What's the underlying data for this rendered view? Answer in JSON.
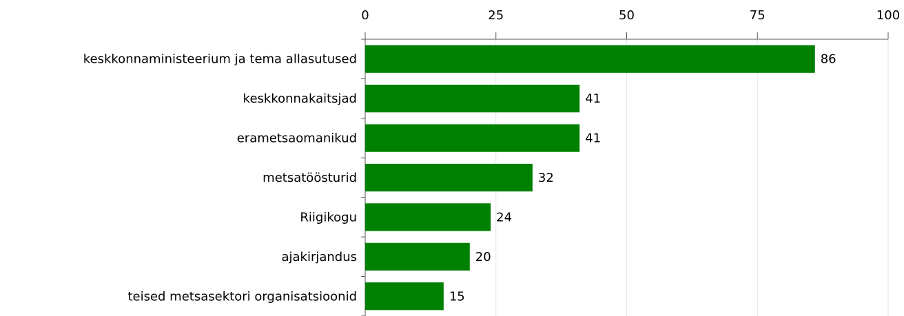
{
  "chart_data": {
    "type": "bar",
    "orientation": "horizontal",
    "categories": [
      "keskkonnaministeerium ja tema allasutused",
      "keskkonnakaitsjad",
      "erametsaomanikud",
      "metsatöösturid",
      "Riigikogu",
      "ajakirjandus",
      "teised metsasektori organisatsioonid"
    ],
    "values": [
      86,
      41,
      41,
      32,
      24,
      20,
      15
    ],
    "color": "#008000",
    "xlim": [
      0,
      100
    ],
    "xticks": [
      0,
      25,
      50,
      75,
      100
    ],
    "grid": true
  }
}
